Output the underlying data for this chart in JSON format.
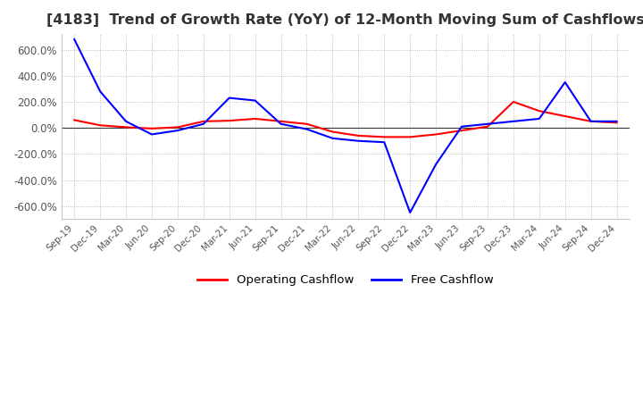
{
  "title": "[4183]  Trend of Growth Rate (YoY) of 12-Month Moving Sum of Cashflows",
  "title_fontsize": 11.5,
  "ylim": [
    -700,
    720
  ],
  "yticks": [
    -600,
    -400,
    -200,
    0,
    200,
    400,
    600
  ],
  "ytick_labels": [
    "-600.0%",
    "-400.0%",
    "-200.0%",
    "0.0%",
    "200.0%",
    "400.0%",
    "600.0%"
  ],
  "background_color": "#ffffff",
  "grid_color": "#aaaaaa",
  "legend_labels": [
    "Operating Cashflow",
    "Free Cashflow"
  ],
  "legend_colors": [
    "red",
    "blue"
  ],
  "x_labels": [
    "Sep-19",
    "Dec-19",
    "Mar-20",
    "Jun-20",
    "Sep-20",
    "Dec-20",
    "Mar-21",
    "Jun-21",
    "Sep-21",
    "Dec-21",
    "Mar-22",
    "Jun-22",
    "Sep-22",
    "Dec-22",
    "Mar-23",
    "Jun-23",
    "Sep-23",
    "Dec-23",
    "Mar-24",
    "Jun-24",
    "Sep-24",
    "Dec-24"
  ],
  "operating_cashflow": [
    60,
    20,
    5,
    -5,
    5,
    50,
    55,
    70,
    50,
    30,
    -30,
    -60,
    -70,
    -70,
    -50,
    -20,
    10,
    200,
    130,
    90,
    50,
    40
  ],
  "free_cashflow": [
    680,
    280,
    50,
    -50,
    -20,
    30,
    230,
    210,
    30,
    -10,
    -80,
    -100,
    -110,
    -650,
    -280,
    10,
    30,
    50,
    70,
    350,
    50,
    50
  ]
}
